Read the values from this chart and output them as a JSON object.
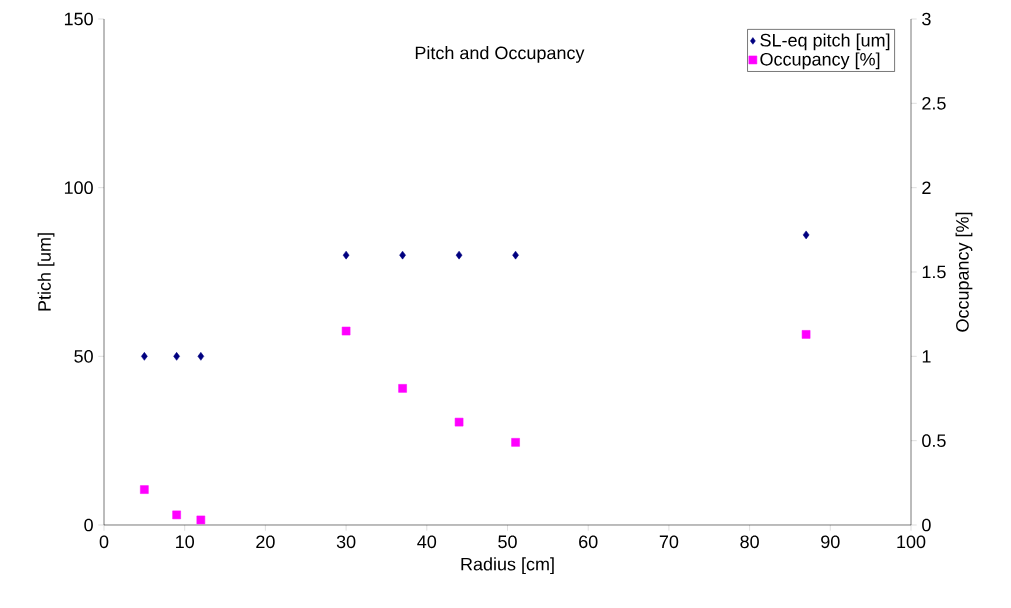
{
  "chart_data": {
    "type": "scatter",
    "title": "Pitch and Occupancy",
    "xlabel": "Radius [cm]",
    "ylabel": "Ptich [um]",
    "y2label": "Occupancy [%]",
    "x": [
      5,
      9,
      12,
      30,
      37,
      44,
      51,
      87
    ],
    "series": [
      {
        "name": "SL-eq pitch [um]",
        "color": "#000080",
        "marker": "diamond",
        "values": [
          50,
          50,
          50,
          80,
          80,
          80,
          80,
          86
        ]
      },
      {
        "name": "Occupancy [%]",
        "color": "#ff00ff",
        "marker": "square",
        "axis": "y2",
        "values": [
          0.21,
          0.06,
          0.03,
          1.15,
          0.81,
          0.61,
          0.49,
          1.13
        ]
      }
    ],
    "xlim": [
      0,
      100
    ],
    "xticks": [
      0,
      10,
      20,
      30,
      40,
      50,
      60,
      70,
      80,
      90,
      100
    ],
    "ylim": [
      0,
      150
    ],
    "yticks": [
      0,
      50,
      100,
      150
    ],
    "y2lim": [
      0,
      3
    ],
    "y2ticks": [
      0,
      0.5,
      1,
      1.5,
      2,
      2.5,
      3
    ],
    "legend": "top right"
  }
}
